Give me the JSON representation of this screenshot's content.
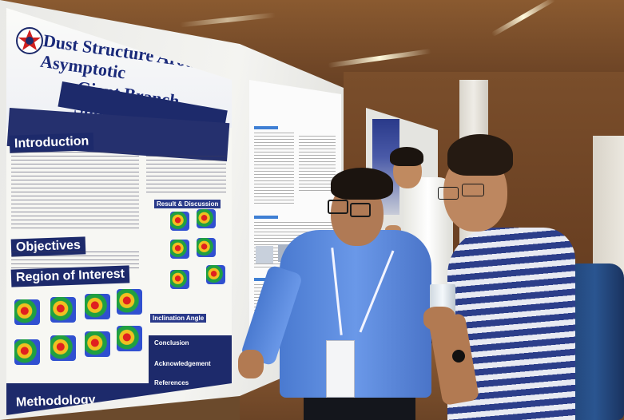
{
  "poster": {
    "title_line1": "Dust Structure Around Asymptotic",
    "title_line2": "Giant Branch Stars",
    "sections": {
      "introduction": "Introduction",
      "objectives": "Objectives",
      "region": "Region of Interest",
      "methodology": "Methodology",
      "results": "Result & Discussion",
      "inclination": "Inclination Angle",
      "conclusion": "Conclusion",
      "acknowledgement": "Acknowledgement",
      "references": "References"
    }
  },
  "colors": {
    "poster_blue": "#1d2a6b",
    "shirt_blue": "#5a88dc",
    "wall_wood": "#6e4526",
    "board_white": "#f0f0ed"
  }
}
